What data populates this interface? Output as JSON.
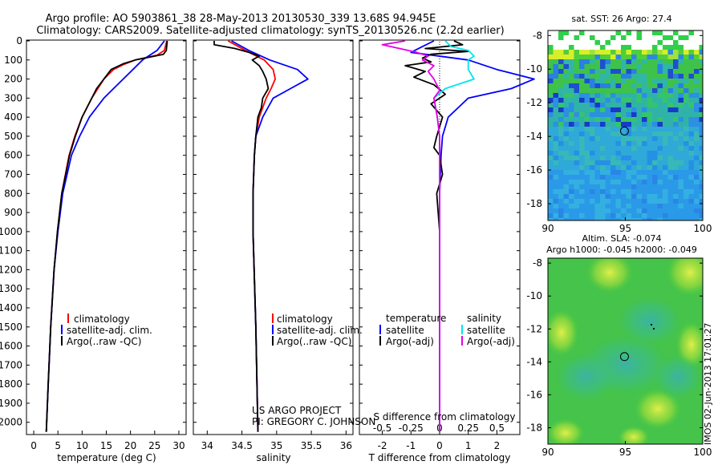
{
  "header": {
    "line1": "Argo profile: AO 5903861_38 28-May-2013 20130530_339 13.68S 94.945E",
    "line2": "Climatology: CARS2009. Satellite-adjusted climatology: synTS_20130526.nc (2.2d earlier)"
  },
  "colors": {
    "climatology": "#ff0000",
    "satellite": "#0000ff",
    "argo": "#000000",
    "sal_satellite": "#00e5ee",
    "sal_argo": "#e600e6"
  },
  "depth_axis": {
    "ticks": [
      0,
      100,
      200,
      300,
      400,
      500,
      600,
      700,
      800,
      900,
      1000,
      1100,
      1200,
      1300,
      1400,
      1500,
      1600,
      1700,
      1800,
      1900,
      2000
    ],
    "range": [
      0,
      2060
    ]
  },
  "legend": {
    "climatology": "climatology",
    "satellite_adj": "satellite-adj. clim.",
    "argo_raw": "Argo(..raw -QC)",
    "temperature": "temperature",
    "salinity": "salinity",
    "satellite": "satellite",
    "argo_adj": "Argo(-adj)"
  },
  "credits": {
    "project": "US ARGO PROJECT",
    "pi": "PI: GREGORY C. JOHNSON"
  },
  "chart_data": [
    {
      "type": "line",
      "name": "temperature-profile",
      "xlabel": "temperature (deg C)",
      "ylabel": "depth",
      "xlim": [
        -1.5,
        31.5
      ],
      "xticks": [
        0,
        5,
        10,
        15,
        20,
        25,
        30
      ],
      "y_reversed": true,
      "series": [
        {
          "name": "climatology",
          "depth": [
            0,
            50,
            75,
            100,
            125,
            150,
            200,
            300,
            400,
            500,
            600,
            800,
            1000,
            1200,
            1500,
            1800,
            2050
          ],
          "values": [
            27.5,
            27.0,
            25.5,
            21.0,
            18.5,
            16.5,
            14.5,
            12.0,
            10.0,
            8.5,
            7.3,
            5.8,
            4.9,
            4.2,
            3.5,
            3.0,
            2.6
          ]
        },
        {
          "name": "satellite-adj. clim.",
          "depth": [
            0,
            50,
            75,
            100,
            150,
            200,
            250,
            300,
            400,
            500,
            600,
            800,
            1000,
            1200,
            1500,
            1800,
            2050
          ],
          "values": [
            27.0,
            25.5,
            24.0,
            22.5,
            20.5,
            18.5,
            16.5,
            14.5,
            11.5,
            9.5,
            7.8,
            6.0,
            5.0,
            4.2,
            3.5,
            3.0,
            2.6
          ]
        },
        {
          "name": "Argo(..raw -QC)",
          "depth": [
            0,
            50,
            70,
            80,
            100,
            120,
            150,
            200,
            250,
            300,
            400,
            500,
            600,
            800,
            1000,
            1200,
            1500,
            1800,
            2050
          ],
          "values": [
            27.6,
            27.4,
            26.8,
            25.0,
            21.0,
            18.5,
            16.0,
            14.5,
            13.0,
            12.0,
            10.0,
            8.6,
            7.4,
            5.8,
            4.9,
            4.2,
            3.5,
            3.0,
            2.6
          ]
        }
      ]
    },
    {
      "type": "line",
      "name": "salinity-profile",
      "xlabel": "salinity",
      "ylabel": "depth",
      "xlim": [
        33.8,
        36.1
      ],
      "xticks": [
        34,
        34.5,
        35,
        35.5,
        36
      ],
      "y_reversed": true,
      "series": [
        {
          "name": "climatology",
          "depth": [
            0,
            50,
            100,
            150,
            200,
            250,
            300,
            400,
            500,
            600,
            800,
            1000,
            1500,
            2050
          ],
          "values": [
            34.3,
            34.55,
            34.82,
            34.95,
            34.98,
            34.92,
            34.85,
            34.75,
            34.7,
            34.68,
            34.66,
            34.66,
            34.7,
            34.73
          ]
        },
        {
          "name": "satellite-adj. clim.",
          "depth": [
            0,
            50,
            100,
            150,
            200,
            250,
            300,
            400,
            500,
            600,
            800,
            1000,
            1500,
            2050
          ],
          "values": [
            34.35,
            34.6,
            34.9,
            35.3,
            35.45,
            35.2,
            34.95,
            34.8,
            34.7,
            34.68,
            34.66,
            34.66,
            34.7,
            34.73
          ]
        },
        {
          "name": "Argo(..raw -QC)",
          "depth": [
            0,
            20,
            40,
            60,
            80,
            100,
            130,
            160,
            200,
            250,
            300,
            350,
            400,
            500,
            600,
            800,
            1000,
            1500,
            2050
          ],
          "values": [
            34.1,
            34.1,
            34.4,
            34.6,
            34.75,
            34.65,
            34.75,
            34.8,
            34.85,
            34.88,
            34.8,
            34.78,
            34.73,
            34.7,
            34.68,
            34.66,
            34.66,
            34.7,
            34.73
          ]
        }
      ]
    },
    {
      "type": "line",
      "name": "difference-profile",
      "xlabel": "T difference from climatology",
      "x2label": "S difference from climatology",
      "ylabel": "depth",
      "xlim": [
        -2.8,
        2.8
      ],
      "xticks": [
        -2,
        -1,
        0,
        1,
        2
      ],
      "x2lim": [
        -0.7,
        0.7
      ],
      "x2ticks": [
        "-0.5",
        "-0.25",
        "0",
        "0.25",
        "0.5"
      ],
      "y_reversed": true,
      "series": [
        {
          "name": "temperature satellite",
          "depth": [
            0,
            30,
            60,
            100,
            150,
            200,
            250,
            300,
            400,
            500,
            600,
            800,
            1000,
            1500,
            2050
          ],
          "values": [
            -0.2,
            -0.6,
            -1.0,
            1.0,
            2.0,
            3.3,
            2.5,
            1.0,
            0.3,
            0.1,
            0.05,
            0,
            0,
            0,
            0
          ]
        },
        {
          "name": "temperature Argo(-adj)",
          "depth": [
            0,
            20,
            40,
            55,
            70,
            90,
            110,
            130,
            160,
            190,
            230,
            280,
            330,
            400,
            500,
            560,
            600,
            700,
            800,
            1000,
            1500,
            2050
          ],
          "values": [
            0.5,
            0.8,
            -0.5,
            1.0,
            -0.3,
            -0.6,
            -0.3,
            -1.2,
            -0.5,
            -0.9,
            -0.2,
            0.2,
            -0.3,
            0.1,
            -0.1,
            -0.2,
            0,
            0.1,
            -0.1,
            0,
            0,
            0
          ]
        },
        {
          "name": "salinity satellite",
          "depth": [
            0,
            30,
            50,
            80,
            100,
            150,
            200,
            250,
            300,
            400,
            500,
            600,
            800,
            1000,
            1500,
            2050
          ],
          "values": [
            0.05,
            0.1,
            0.25,
            0.3,
            0.25,
            0.25,
            0.3,
            0.05,
            -0.05,
            -0.02,
            0,
            0,
            0,
            0,
            0,
            0
          ]
        },
        {
          "name": "salinity Argo(-adj)",
          "depth": [
            0,
            20,
            40,
            60,
            80,
            100,
            130,
            160,
            200,
            260,
            300,
            400,
            500,
            600,
            800,
            1000,
            1500,
            2050
          ],
          "values": [
            -0.3,
            -0.5,
            -0.35,
            -0.2,
            -0.1,
            -0.15,
            -0.05,
            -0.1,
            -0.05,
            0,
            -0.05,
            -0.02,
            0,
            0,
            0,
            0,
            0,
            0
          ]
        }
      ]
    },
    {
      "type": "heatmap",
      "name": "sst-map",
      "title": "sat. SST: 26 Argo: 27.4",
      "xlim": [
        90,
        100
      ],
      "ylim": [
        -19,
        -7.7
      ],
      "xticks": [
        90,
        95,
        100
      ],
      "yticks": [
        -8,
        -10,
        -12,
        -14,
        -16,
        -18
      ],
      "marker": {
        "lon": 94.945,
        "lat": -13.68
      }
    },
    {
      "type": "heatmap",
      "name": "sla-map",
      "title": "Altim. SLA: -0.074",
      "subtitle": "Argo h1000: -0.045 h2000: -0.049",
      "xlim": [
        90,
        100
      ],
      "ylim": [
        -19,
        -7.7
      ],
      "xticks": [
        90,
        95,
        100
      ],
      "yticks": [
        -8,
        -10,
        -12,
        -14,
        -16,
        -18
      ],
      "marker": {
        "lon": 94.945,
        "lat": -13.68
      }
    }
  ],
  "stamp": "IMOS 02-Jun-2013 17:01:27"
}
